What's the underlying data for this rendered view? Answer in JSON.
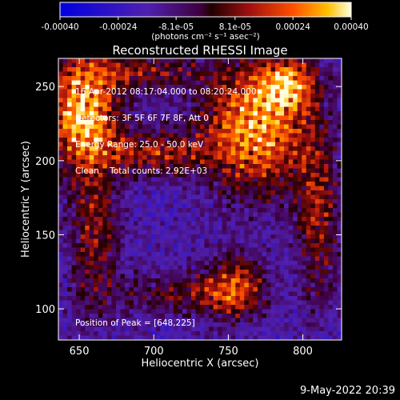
{
  "chart_data": {
    "type": "heatmap",
    "title": "Reconstructed RHESSI Image",
    "xlabel": "Heliocentric X (arcsec)",
    "ylabel": "Heliocentric Y (arcsec)",
    "xlim": [
      636,
      826
    ],
    "ylim": [
      79,
      269
    ],
    "xticks": [
      {
        "value": 650,
        "label": "650"
      },
      {
        "value": 700,
        "label": "700"
      },
      {
        "value": 750,
        "label": "750"
      },
      {
        "value": 800,
        "label": "800"
      }
    ],
    "yticks": [
      {
        "value": 100,
        "label": "100"
      },
      {
        "value": 150,
        "label": "150"
      },
      {
        "value": 200,
        "label": "200"
      },
      {
        "value": 250,
        "label": "250"
      }
    ],
    "colorbar": {
      "min": -0.0004,
      "max": 0.0004,
      "unit_label": "(photons cm⁻² s⁻¹ asec⁻²)",
      "ticks": [
        {
          "value": -0.0004,
          "label": "-0.00040"
        },
        {
          "value": -0.00024,
          "label": "-0.00024"
        },
        {
          "value": -8.1e-05,
          "label": "-8.1e-05"
        },
        {
          "value": 8.1e-05,
          "label": "8.1e-05"
        },
        {
          "value": 0.00024,
          "label": "0.00024"
        },
        {
          "value": 0.0004,
          "label": "0.00040"
        }
      ]
    },
    "peak": {
      "x": 648,
      "y": 225
    },
    "sources": [
      {
        "x": 652,
        "y": 232,
        "sx": 18,
        "sy": 26,
        "amp": 1.0
      },
      {
        "x": 768,
        "y": 222,
        "sx": 26,
        "sy": 30,
        "amp": 0.95
      },
      {
        "x": 790,
        "y": 252,
        "sx": 14,
        "sy": 12,
        "amp": 0.7
      },
      {
        "x": 700,
        "y": 205,
        "sx": 22,
        "sy": 10,
        "amp": 0.55
      },
      {
        "x": 755,
        "y": 115,
        "sx": 14,
        "sy": 16,
        "amp": 0.6
      },
      {
        "x": 810,
        "y": 160,
        "sx": 10,
        "sy": 40,
        "amp": 0.5
      },
      {
        "x": 660,
        "y": 150,
        "sx": 12,
        "sy": 40,
        "amp": 0.45
      },
      {
        "x": 720,
        "y": 110,
        "sx": 30,
        "sy": 10,
        "amp": 0.4
      },
      {
        "x": 690,
        "y": 260,
        "sx": 30,
        "sy": 8,
        "amp": 0.45
      }
    ]
  },
  "info": {
    "time_range": "16-Apr-2012 08:17:04.000 to 08:20:24.000",
    "detectors": "Detectors: 3F 5F 6F 7F 8F, Att 0",
    "energy": "Energy Range: 25.0 - 50.0 keV",
    "method": "Clean",
    "counts": "Total counts: 2.92E+03",
    "peak_label": "Position of Peak = [648,225]"
  },
  "timestamp": "9-May-2022 20:39"
}
